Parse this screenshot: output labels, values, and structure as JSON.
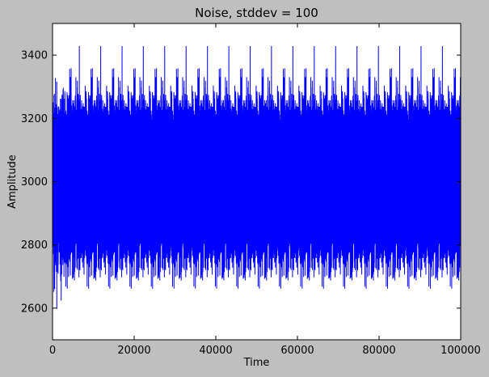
{
  "chart_data": {
    "type": "line",
    "title": "Noise, stddev = 100",
    "xlabel": "Time",
    "ylabel": "Amplitude",
    "xlim": [
      0,
      100000
    ],
    "ylim": [
      2500,
      3500
    ],
    "xticks": [
      0,
      20000,
      40000,
      60000,
      80000,
      100000
    ],
    "yticks": [
      2600,
      2800,
      3000,
      3200,
      3400
    ],
    "xtick_labels": [
      "0",
      "20000",
      "40000",
      "60000",
      "80000",
      "100000"
    ],
    "ytick_labels": [
      "2600",
      "2800",
      "3000",
      "3200",
      "3400"
    ],
    "grid": false,
    "legend": false,
    "series": [
      {
        "color": "#0000ff",
        "mean": 3000,
        "stddev": 100,
        "n_points": 100000,
        "observed_min": 2570,
        "observed_max": 3455
      }
    ],
    "colors": {
      "figure_background": "#bfbfbf",
      "axes_background": "#ffffff",
      "line": "#0000ff"
    }
  }
}
